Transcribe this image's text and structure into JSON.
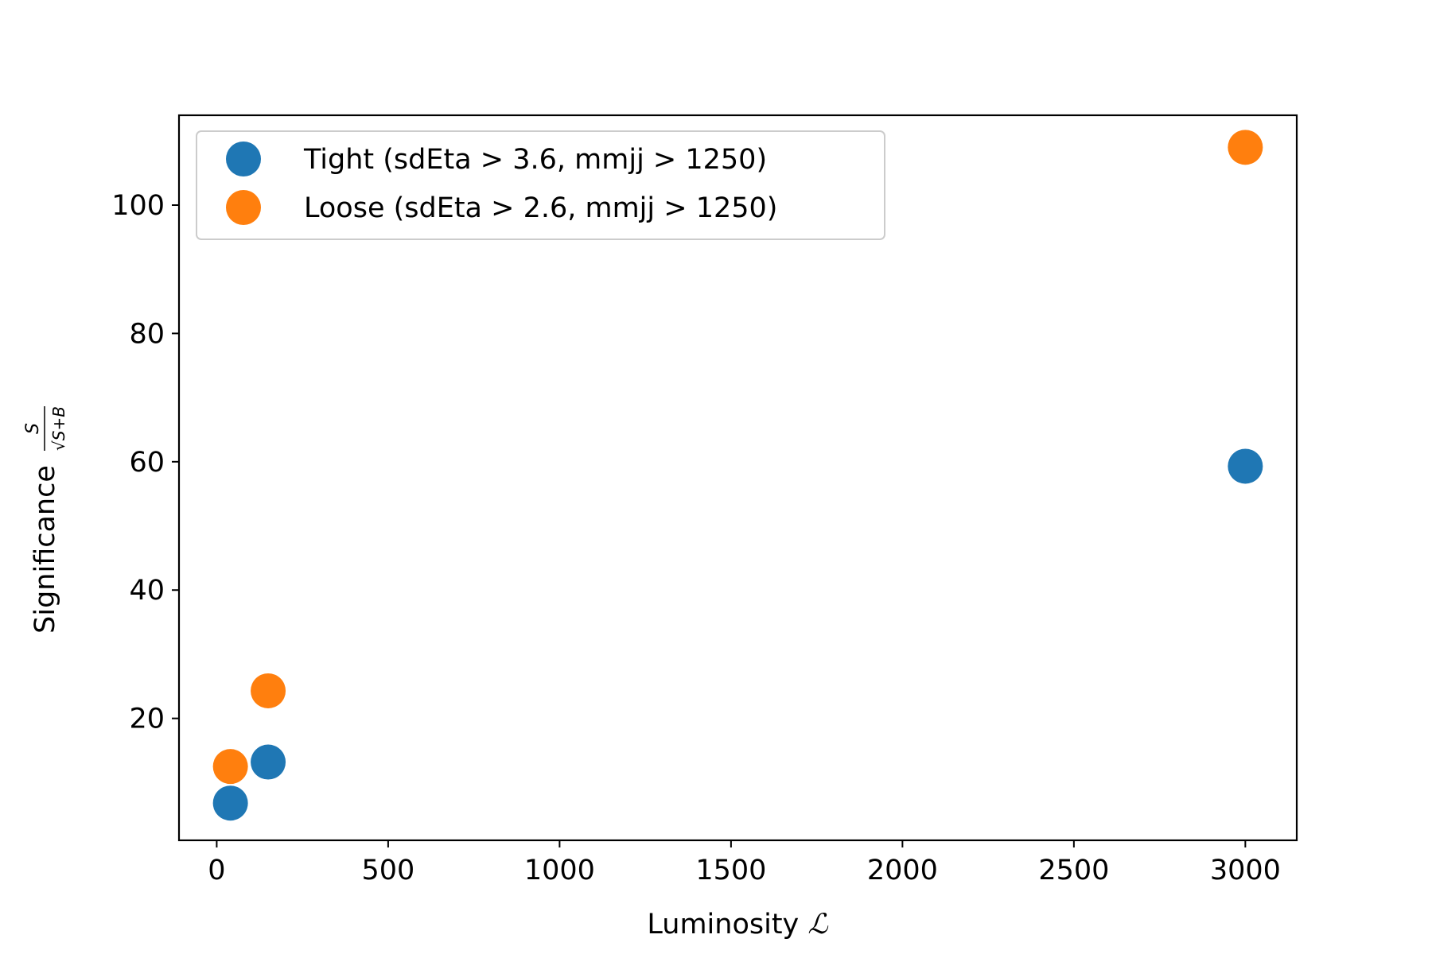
{
  "chart_data": {
    "type": "scatter",
    "xlabel": "Luminosity",
    "xlabel_symbol": "ℒ",
    "ylabel": "Significance",
    "ylabel_fraction": {
      "numerator": "S",
      "denominator": "√S+B"
    },
    "xlim": [
      -110,
      3150
    ],
    "ylim": [
      1,
      114
    ],
    "xticks": [
      0,
      500,
      1000,
      1500,
      2000,
      2500,
      3000
    ],
    "yticks": [
      20,
      40,
      60,
      80,
      100
    ],
    "grid": false,
    "legend_position": "top-left",
    "series": [
      {
        "name": "Tight (sdEta > 3.6, mmjj > 1250)",
        "color": "#1f77b4",
        "x": [
          40,
          150,
          3000
        ],
        "y": [
          6.8,
          13.2,
          59.3
        ]
      },
      {
        "name": "Loose (sdEta > 2.6, mmjj > 1250)",
        "color": "#ff7f0e",
        "x": [
          40,
          150,
          3000
        ],
        "y": [
          12.5,
          24.3,
          109
        ]
      }
    ]
  }
}
